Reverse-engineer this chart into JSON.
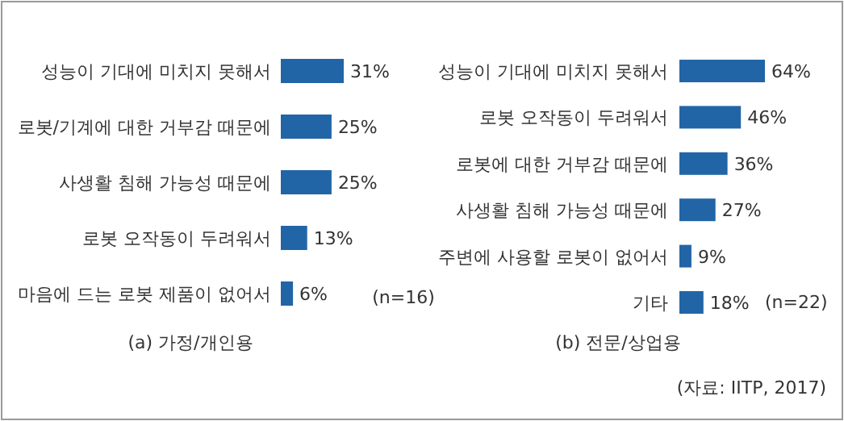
{
  "chart_data": [
    {
      "type": "bar",
      "orientation": "horizontal",
      "relative": false,
      "title": "(a) 가정/개인용",
      "categories": [
        "성능이 기대에 미치지 못해서",
        "로봇/기계에 대한 거부감 때문에",
        "사생활 침해 가능성 때문에",
        "로봇 오작동이 두려워서",
        "마음에 드는 로봇 제품이 없어서"
      ],
      "values": [
        31,
        25,
        25,
        13,
        6
      ],
      "value_labels": [
        "31%",
        "25%",
        "25%",
        "13%",
        "6%"
      ],
      "color": "#2265a6",
      "annotations": [
        "(n=16)"
      ]
    },
    {
      "type": "bar",
      "orientation": "horizontal",
      "title": "(b) 전문/상업용",
      "categories": [
        "성능이 기대에 미치지 못해서",
        "로봇 오작동이 두려워서",
        "로봇에 대한 거부감 때문에",
        "사생활 침해 가능성 때문에",
        "주변에 사용할 로봇이 없어서",
        "기타"
      ],
      "values": [
        64,
        46,
        36,
        27,
        9,
        18
      ],
      "value_labels": [
        "64%",
        "46%",
        "36%",
        "27%",
        "9%",
        "18%"
      ],
      "color": "#2265a6",
      "annotations": [
        "(n=22)",
        "(자료: IITP, 2017)"
      ]
    }
  ]
}
